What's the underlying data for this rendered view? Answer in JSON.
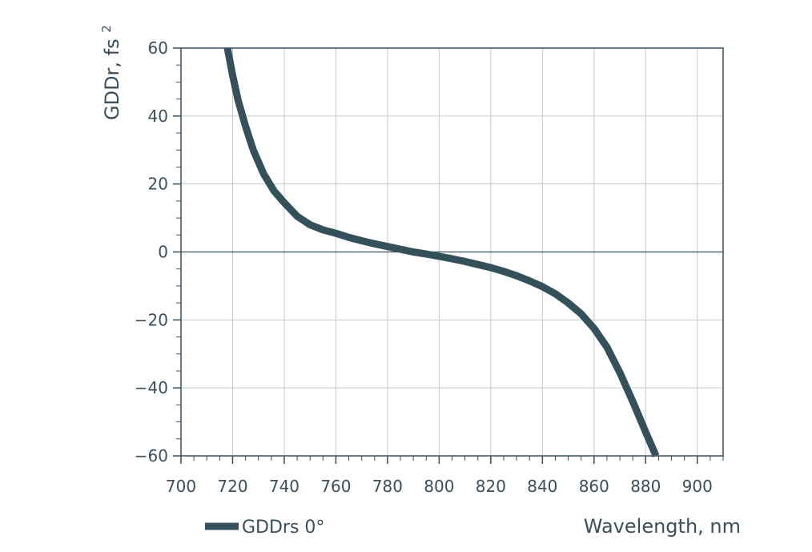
{
  "chart_data": {
    "type": "line",
    "title": "",
    "xlabel": "Wavelength, nm",
    "ylabel": "GDDr, fs",
    "ylabel_superscript": "2",
    "xlim": [
      700,
      910
    ],
    "ylim": [
      -60,
      60
    ],
    "x_ticks": [
      700,
      720,
      740,
      760,
      780,
      800,
      820,
      840,
      860,
      880,
      900
    ],
    "x_tick_labels": [
      "700",
      "720",
      "740",
      "760",
      "780",
      "800",
      "820",
      "840",
      "860",
      "880",
      "900"
    ],
    "y_ticks": [
      60,
      40,
      20,
      0,
      -20,
      -40,
      -60
    ],
    "y_tick_labels": [
      "60",
      "40",
      "20",
      "0",
      "−20",
      "−40",
      "−60"
    ],
    "grid": true,
    "legend_position": "bottom-left",
    "series": [
      {
        "name": "GDDrs 0°",
        "color": "#34505b",
        "x": [
          718,
          720,
          722,
          725,
          728,
          732,
          736,
          740,
          745,
          750,
          755,
          760,
          765,
          770,
          775,
          780,
          785,
          790,
          795,
          800,
          805,
          810,
          815,
          820,
          825,
          830,
          835,
          840,
          845,
          850,
          855,
          860,
          865,
          870,
          875,
          880,
          884
        ],
        "y": [
          60,
          52,
          45,
          37,
          30,
          23,
          18,
          14.5,
          10.5,
          8,
          6.5,
          5.5,
          4.3,
          3.3,
          2.4,
          1.6,
          0.8,
          0,
          -0.6,
          -1.3,
          -2,
          -2.8,
          -3.7,
          -4.6,
          -5.7,
          -7,
          -8.5,
          -10.2,
          -12.3,
          -15,
          -18.2,
          -22.5,
          -28,
          -35.5,
          -44,
          -53,
          -60
        ]
      }
    ]
  }
}
